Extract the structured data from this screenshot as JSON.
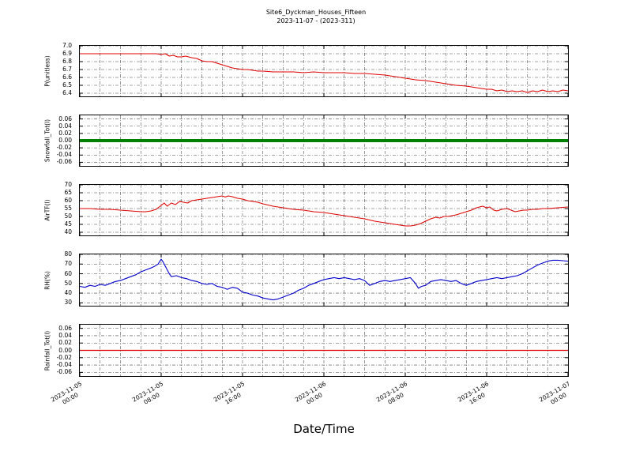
{
  "title": {
    "line1": "Site6_Dyckman_Houses_Fifteen",
    "line2": "2023-11-07 - (2023-311)"
  },
  "x_axis": {
    "label": "Date/Time",
    "range_hours": [
      0,
      48
    ],
    "major_tick_hours": [
      0,
      8,
      16,
      24,
      32,
      40,
      48
    ],
    "grid_interval_hours": 2,
    "tick_labels": [
      {
        "date": "2023-11-05",
        "time": "00:00"
      },
      {
        "date": "2023-11-05",
        "time": "08:00"
      },
      {
        "date": "2023-11-05",
        "time": "16:00"
      },
      {
        "date": "2023-11-06",
        "time": "00:00"
      },
      {
        "date": "2023-11-06",
        "time": "08:00"
      },
      {
        "date": "2023-11-06",
        "time": "16:00"
      },
      {
        "date": "2023-11-07",
        "time": "00:00"
      }
    ]
  },
  "chart_data": [
    {
      "type": "line",
      "ylabel": "P(unitless)",
      "color": "#e00000",
      "line_width": 1.1,
      "ylim": [
        6.36,
        7.0
      ],
      "yticks": [
        6.4,
        6.5,
        6.6,
        6.7,
        6.8,
        6.9,
        7.0
      ],
      "ytick_labels": [
        "6.4",
        "6.5",
        "6.6",
        "6.7",
        "6.8",
        "6.9",
        "7.0"
      ],
      "points": [
        [
          0,
          6.9
        ],
        [
          3,
          6.9
        ],
        [
          6,
          6.9
        ],
        [
          7.5,
          6.9
        ],
        [
          8,
          6.89
        ],
        [
          8.4,
          6.9
        ],
        [
          8.8,
          6.87
        ],
        [
          9.2,
          6.88
        ],
        [
          9.6,
          6.86
        ],
        [
          10,
          6.86
        ],
        [
          10.4,
          6.87
        ],
        [
          11,
          6.85
        ],
        [
          11.5,
          6.84
        ],
        [
          12,
          6.81
        ],
        [
          12.5,
          6.8
        ],
        [
          13,
          6.8
        ],
        [
          13.5,
          6.78
        ],
        [
          14,
          6.76
        ],
        [
          14.5,
          6.74
        ],
        [
          15,
          6.72
        ],
        [
          15.5,
          6.71
        ],
        [
          16,
          6.7
        ],
        [
          16.5,
          6.7
        ],
        [
          17,
          6.69
        ],
        [
          17.5,
          6.68
        ],
        [
          18,
          6.68
        ],
        [
          19,
          6.67
        ],
        [
          20,
          6.67
        ],
        [
          21,
          6.67
        ],
        [
          22,
          6.66
        ],
        [
          23,
          6.67
        ],
        [
          24,
          6.66
        ],
        [
          25,
          6.66
        ],
        [
          26,
          6.66
        ],
        [
          27,
          6.65
        ],
        [
          28,
          6.65
        ],
        [
          29,
          6.64
        ],
        [
          30,
          6.63
        ],
        [
          31,
          6.61
        ],
        [
          32,
          6.59
        ],
        [
          33,
          6.57
        ],
        [
          34,
          6.56
        ],
        [
          35,
          6.54
        ],
        [
          36,
          6.52
        ],
        [
          37,
          6.5
        ],
        [
          38,
          6.49
        ],
        [
          39,
          6.47
        ],
        [
          40,
          6.45
        ],
        [
          40.5,
          6.45
        ],
        [
          41,
          6.43
        ],
        [
          41.5,
          6.44
        ],
        [
          42,
          6.42
        ],
        [
          42.5,
          6.43
        ],
        [
          43,
          6.42
        ],
        [
          43.5,
          6.43
        ],
        [
          44,
          6.41
        ],
        [
          44.5,
          6.43
        ],
        [
          45,
          6.42
        ],
        [
          45.5,
          6.44
        ],
        [
          46,
          6.42
        ],
        [
          46.5,
          6.43
        ],
        [
          47,
          6.42
        ],
        [
          47.5,
          6.44
        ],
        [
          48,
          6.43
        ]
      ]
    },
    {
      "type": "line",
      "ylabel": "Snowfall_Tot(l)",
      "color": "#008000",
      "line_width": 4,
      "ylim": [
        -0.07,
        0.07
      ],
      "yticks": [
        -0.06,
        -0.04,
        -0.02,
        0.0,
        0.02,
        0.04,
        0.06
      ],
      "ytick_labels": [
        "-0.06",
        "-0.04",
        "-0.02",
        "0.00",
        "0.02",
        "0.04",
        "0.06"
      ],
      "points": [
        [
          0,
          0
        ],
        [
          48,
          0
        ]
      ]
    },
    {
      "type": "line",
      "ylabel": "AirTF(l)",
      "color": "#e00000",
      "line_width": 1.1,
      "ylim": [
        38,
        70
      ],
      "yticks": [
        40,
        45,
        50,
        55,
        60,
        65,
        70
      ],
      "ytick_labels": [
        "40",
        "45",
        "50",
        "55",
        "60",
        "65",
        "70"
      ],
      "points": [
        [
          0,
          55
        ],
        [
          1,
          55
        ],
        [
          2,
          54.5
        ],
        [
          3,
          54.5
        ],
        [
          4,
          54
        ],
        [
          5,
          53.5
        ],
        [
          6,
          53
        ],
        [
          6.5,
          53
        ],
        [
          7,
          53.5
        ],
        [
          7.5,
          54.5
        ],
        [
          8,
          57
        ],
        [
          8.3,
          58.5
        ],
        [
          8.6,
          56.5
        ],
        [
          9,
          58.5
        ],
        [
          9.4,
          57.5
        ],
        [
          9.8,
          59.5
        ],
        [
          10.2,
          59
        ],
        [
          10.6,
          58.5
        ],
        [
          11,
          60
        ],
        [
          11.5,
          60.5
        ],
        [
          12,
          61
        ],
        [
          12.5,
          61.5
        ],
        [
          13,
          62
        ],
        [
          13.5,
          62.5
        ],
        [
          14,
          63
        ],
        [
          14.3,
          62.3
        ],
        [
          14.6,
          63
        ],
        [
          15,
          62.5
        ],
        [
          15.5,
          61.5
        ],
        [
          16,
          61
        ],
        [
          16.5,
          60
        ],
        [
          17,
          59.5
        ],
        [
          17.5,
          59
        ],
        [
          18,
          58
        ],
        [
          19,
          56.5
        ],
        [
          20,
          55.5
        ],
        [
          21,
          54.5
        ],
        [
          22,
          54
        ],
        [
          23,
          53
        ],
        [
          24,
          52.5
        ],
        [
          25,
          51.5
        ],
        [
          26,
          50.5
        ],
        [
          27,
          49.5
        ],
        [
          28,
          48.5
        ],
        [
          29,
          47
        ],
        [
          30,
          46
        ],
        [
          30.5,
          45.5
        ],
        [
          31,
          45
        ],
        [
          31.5,
          44.5
        ],
        [
          32,
          44
        ],
        [
          32.5,
          44
        ],
        [
          33,
          44.5
        ],
        [
          33.5,
          45.5
        ],
        [
          34,
          47
        ],
        [
          34.5,
          48.5
        ],
        [
          35,
          49.5
        ],
        [
          35.4,
          49
        ],
        [
          35.8,
          50
        ],
        [
          36.2,
          50
        ],
        [
          36.6,
          50.5
        ],
        [
          37,
          51
        ],
        [
          37.5,
          52
        ],
        [
          38,
          53
        ],
        [
          38.5,
          54
        ],
        [
          39,
          55.5
        ],
        [
          39.3,
          56
        ],
        [
          39.6,
          56.5
        ],
        [
          40,
          55.5
        ],
        [
          40.3,
          56
        ],
        [
          40.7,
          54
        ],
        [
          41,
          53.5
        ],
        [
          41.5,
          54.5
        ],
        [
          42,
          55
        ],
        [
          42.4,
          54
        ],
        [
          42.8,
          53
        ],
        [
          43.2,
          53.5
        ],
        [
          43.6,
          54
        ],
        [
          44,
          54
        ],
        [
          44.5,
          54.5
        ],
        [
          45,
          54.5
        ],
        [
          45.5,
          55
        ],
        [
          46,
          55
        ],
        [
          46.5,
          55.2
        ],
        [
          47,
          55.5
        ],
        [
          48,
          56
        ]
      ]
    },
    {
      "type": "line",
      "ylabel": "RH(%)",
      "color": "#0000cc",
      "line_width": 1.1,
      "ylim": [
        27,
        80
      ],
      "yticks": [
        30,
        40,
        50,
        60,
        70,
        80
      ],
      "ytick_labels": [
        "30",
        "40",
        "50",
        "60",
        "70",
        "80"
      ],
      "points": [
        [
          0,
          47
        ],
        [
          0.5,
          46
        ],
        [
          1,
          48
        ],
        [
          1.5,
          47
        ],
        [
          2,
          49
        ],
        [
          2.5,
          48
        ],
        [
          3,
          50
        ],
        [
          3.5,
          52
        ],
        [
          4,
          53
        ],
        [
          4.5,
          55
        ],
        [
          5,
          57
        ],
        [
          5.5,
          59
        ],
        [
          6,
          62
        ],
        [
          6.5,
          64
        ],
        [
          7,
          66
        ],
        [
          7.4,
          68
        ],
        [
          7.7,
          70
        ],
        [
          8,
          75
        ],
        [
          8.2,
          72
        ],
        [
          8.5,
          66
        ],
        [
          8.8,
          60
        ],
        [
          9,
          57
        ],
        [
          9.5,
          58
        ],
        [
          10,
          56
        ],
        [
          10.5,
          55
        ],
        [
          11,
          53
        ],
        [
          11.5,
          52
        ],
        [
          12,
          50
        ],
        [
          12.5,
          49
        ],
        [
          13,
          50
        ],
        [
          13.5,
          47
        ],
        [
          14,
          46
        ],
        [
          14.5,
          44
        ],
        [
          15,
          46
        ],
        [
          15.5,
          45
        ],
        [
          16,
          41
        ],
        [
          16.5,
          40
        ],
        [
          17,
          38
        ],
        [
          17.5,
          37
        ],
        [
          18,
          35
        ],
        [
          18.5,
          34
        ],
        [
          19,
          33
        ],
        [
          19.5,
          34
        ],
        [
          20,
          36
        ],
        [
          20.5,
          38
        ],
        [
          21,
          40
        ],
        [
          21.5,
          43
        ],
        [
          22,
          45
        ],
        [
          22.5,
          48
        ],
        [
          23,
          50
        ],
        [
          23.5,
          52
        ],
        [
          24,
          54
        ],
        [
          24.5,
          55
        ],
        [
          25,
          56
        ],
        [
          25.5,
          55
        ],
        [
          26,
          56
        ],
        [
          26.5,
          55
        ],
        [
          27,
          54
        ],
        [
          27.5,
          55
        ],
        [
          28,
          53
        ],
        [
          28.5,
          48
        ],
        [
          29,
          50
        ],
        [
          29.5,
          52
        ],
        [
          30,
          53
        ],
        [
          30.5,
          52
        ],
        [
          31,
          53
        ],
        [
          31.5,
          54
        ],
        [
          32,
          55
        ],
        [
          32.5,
          56
        ],
        [
          33,
          50
        ],
        [
          33.3,
          45
        ],
        [
          33.6,
          47
        ],
        [
          34,
          48
        ],
        [
          34.5,
          52
        ],
        [
          35,
          53
        ],
        [
          35.5,
          54
        ],
        [
          36,
          53
        ],
        [
          36.5,
          52
        ],
        [
          37,
          53
        ],
        [
          37.5,
          50
        ],
        [
          38,
          48
        ],
        [
          38.5,
          50
        ],
        [
          39,
          52
        ],
        [
          39.5,
          53
        ],
        [
          40,
          54
        ],
        [
          40.5,
          55
        ],
        [
          41,
          56
        ],
        [
          41.5,
          55
        ],
        [
          42,
          56
        ],
        [
          42.5,
          57
        ],
        [
          43,
          58
        ],
        [
          43.5,
          60
        ],
        [
          44,
          63
        ],
        [
          44.5,
          66
        ],
        [
          45,
          69
        ],
        [
          45.5,
          71
        ],
        [
          46,
          73
        ],
        [
          46.5,
          74
        ],
        [
          47,
          74
        ],
        [
          47.5,
          73.5
        ],
        [
          48,
          73
        ]
      ]
    },
    {
      "type": "line",
      "ylabel": "Rainfall_Tot(l)",
      "color": "#e00000",
      "line_width": 1.2,
      "ylim": [
        -0.07,
        0.07
      ],
      "yticks": [
        -0.06,
        -0.04,
        -0.02,
        0.0,
        0.02,
        0.04,
        0.06
      ],
      "ytick_labels": [
        "-0.06",
        "-0.04",
        "-0.02",
        "0.00",
        "0.02",
        "0.04",
        "0.06"
      ],
      "points": [
        [
          0,
          0
        ],
        [
          48,
          0
        ]
      ]
    }
  ]
}
